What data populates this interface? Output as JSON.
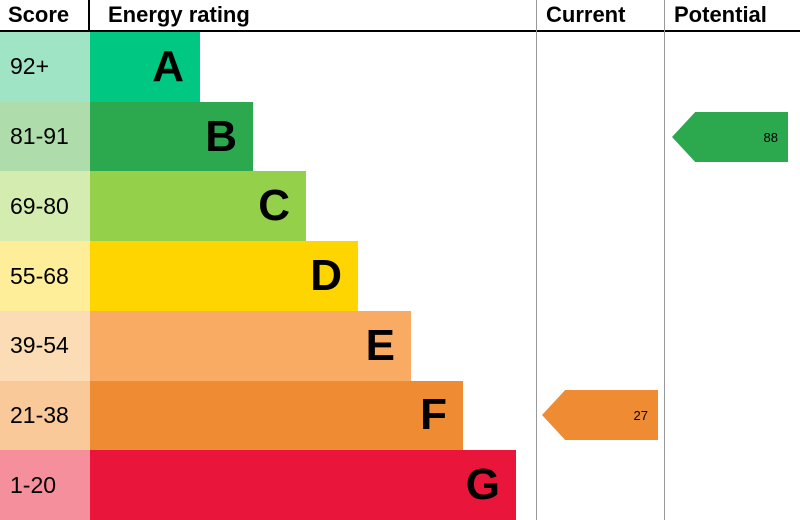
{
  "header": {
    "score": "Score",
    "energy_rating": "Energy rating",
    "current": "Current",
    "potential": "Potential"
  },
  "rows": [
    {
      "score": "92+",
      "letter": "A",
      "band_color": "#00c781",
      "score_bg": "#9fe5c5"
    },
    {
      "score": "81-91",
      "letter": "B",
      "band_color": "#2ca94f",
      "score_bg": "#aedcaa"
    },
    {
      "score": "69-80",
      "letter": "C",
      "band_color": "#95d04a",
      "score_bg": "#d4ecb0"
    },
    {
      "score": "55-68",
      "letter": "D",
      "band_color": "#ffd500",
      "score_bg": "#ffee99"
    },
    {
      "score": "39-54",
      "letter": "E",
      "band_color": "#f9aa63",
      "score_bg": "#fcdcb4"
    },
    {
      "score": "21-38",
      "letter": "F",
      "band_color": "#ee8b33",
      "score_bg": "#f9c99a"
    },
    {
      "score": "1-20",
      "letter": "G",
      "band_color": "#e9153b",
      "score_bg": "#f58f9b"
    }
  ],
  "arrows": {
    "current": {
      "value": "27",
      "color": "#ee8b33",
      "band": "F"
    },
    "potential": {
      "value": "88",
      "color": "#2ca94f",
      "band": "B"
    }
  },
  "chart_data": {
    "type": "bar",
    "title": "Energy rating",
    "categories": [
      "A",
      "B",
      "C",
      "D",
      "E",
      "F",
      "G"
    ],
    "score_ranges": [
      "92+",
      "81-91",
      "69-80",
      "55-68",
      "39-54",
      "21-38",
      "1-20"
    ],
    "band_colors": [
      "#00c781",
      "#2ca94f",
      "#95d04a",
      "#ffd500",
      "#f9aa63",
      "#ee8b33",
      "#e9153b"
    ],
    "current": {
      "value": 27,
      "band": "F"
    },
    "potential": {
      "value": 88,
      "band": "B"
    },
    "legend_position": "none",
    "grid": false
  }
}
